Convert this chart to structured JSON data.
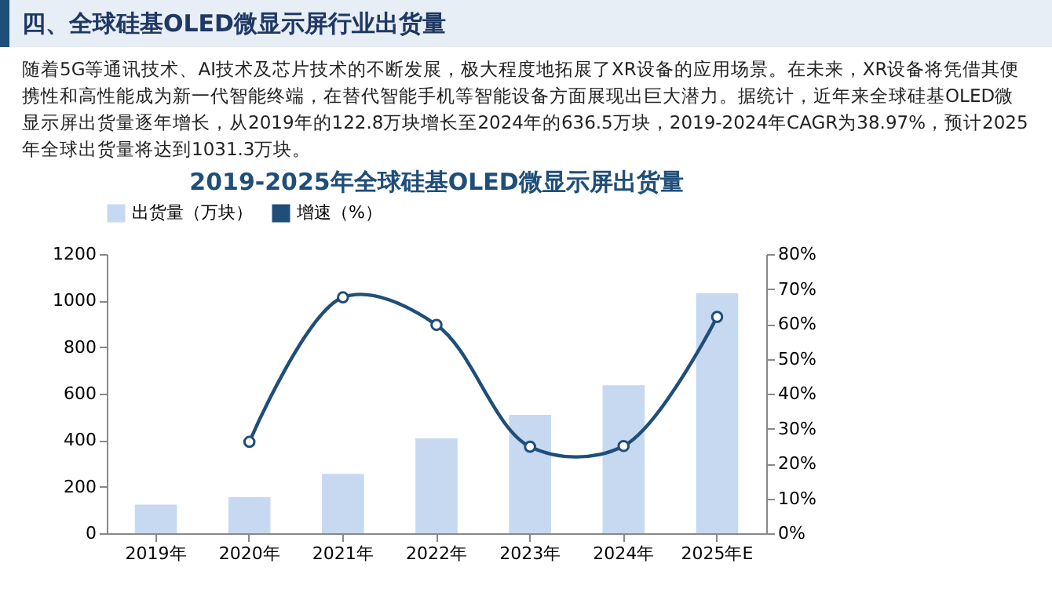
{
  "chart_data": {
    "type": "bar",
    "title": "2019-2025年全球硅基OLED微显示屏出货量",
    "annotations": [
      "四、全球硅基OLED微显示屏行业出货量",
      "随着5G等通讯技术、AI技术及芯片技术的不断发展，极大程度地拓展了XR设备的应用场景。在未来，XR设备将凭借其便携性和高性能成为新一代智能终端，在替代智能手机等智能设备方面展现出巨大潜力。据统计，近年来全球硅基OLED微显示屏出货量逐年增长，从2019年的122.8万块增长至2024年的636.5万块，2019-2024年CAGR为38.97%，预计2025年全球出货量将达到1031.3万块。"
    ],
    "categories": [
      "2019年",
      "2020年",
      "2021年",
      "2022年",
      "2023年",
      "2024年",
      "2025年E"
    ],
    "series": [
      {
        "name": "出货量（万块）",
        "color": "#c6d9f1",
        "values": [
          122.8,
          155,
          255,
          408,
          509,
          636.5,
          1031.3
        ]
      },
      {
        "name": "增速（%）",
        "type": "line",
        "axis": "y2",
        "color": "#1f4e79",
        "values": [
          null,
          26.2,
          67.6,
          59.7,
          24.8,
          25.0,
          62.0
        ]
      }
    ],
    "ylim": [
      0,
      1200
    ],
    "yticks": [
      0,
      200,
      400,
      600,
      800,
      1000,
      1200
    ],
    "y2lim": [
      0,
      80
    ],
    "y2ticks": [
      {
        "value": 0,
        "label": "0%"
      },
      {
        "value": 10,
        "label": "10%"
      },
      {
        "value": 20,
        "label": "20%"
      },
      {
        "value": 30,
        "label": "30%"
      },
      {
        "value": 40,
        "label": "40%"
      },
      {
        "value": 50,
        "label": "50%"
      },
      {
        "value": 60,
        "label": "60%"
      },
      {
        "value": 70,
        "label": "70%"
      },
      {
        "value": 80,
        "label": "80%"
      }
    ],
    "legend": "top",
    "marker": "circle",
    "grid": false
  }
}
